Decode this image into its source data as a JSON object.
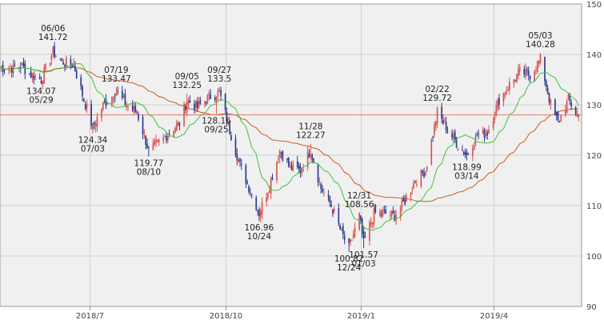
{
  "chart_data": {
    "type": "candlestick",
    "title": "",
    "xlabel": "",
    "ylabel": "",
    "ylim": [
      90,
      150
    ],
    "y_ticks": [
      90,
      100,
      110,
      120,
      130,
      140,
      150
    ],
    "x_range": [
      "2018-05-01",
      "2019-05-31"
    ],
    "x_ticks": [
      {
        "date": "2018-07-01",
        "label": "2018/7"
      },
      {
        "date": "2018-10-01",
        "label": "2018/10"
      },
      {
        "date": "2019-01-01",
        "label": "2019/1"
      },
      {
        "date": "2019-04-01",
        "label": "2019/4"
      }
    ],
    "grid": true,
    "colors": {
      "up": "#d9534f",
      "down": "#2b3990",
      "ma_short": "#3fc23f",
      "ma_long": "#c85a1e",
      "reference_line": "#e8776e",
      "grid": "#cfcfcf",
      "background": "#f0f0f0"
    },
    "reference_line": 128,
    "annotations": [
      {
        "date": "2018-06-06",
        "value": 141.72,
        "label_top": "06/06",
        "label_bottom": "141.72",
        "pos": "above"
      },
      {
        "date": "2018-05-29",
        "value": 134.07,
        "label_top": "134.07",
        "label_bottom": "05/29",
        "pos": "below"
      },
      {
        "date": "2018-07-03",
        "value": 124.34,
        "label_top": "124.34",
        "label_bottom": "07/03",
        "pos": "below"
      },
      {
        "date": "2018-07-19",
        "value": 133.47,
        "label_top": "07/19",
        "label_bottom": "133.47",
        "pos": "above"
      },
      {
        "date": "2018-08-10",
        "value": 119.77,
        "label_top": "119.77",
        "label_bottom": "08/10",
        "pos": "below"
      },
      {
        "date": "2018-09-27",
        "value": 133.5,
        "label_top": "09/27",
        "label_bottom": "133.5",
        "pos": "above"
      },
      {
        "date": "2018-09-05",
        "value": 132.25,
        "label_top": "09/05",
        "label_bottom": "132.25",
        "pos": "above"
      },
      {
        "date": "2018-09-25",
        "value": 128.16,
        "label_top": "128.16",
        "label_bottom": "09/25",
        "pos": "below"
      },
      {
        "date": "2018-10-24",
        "value": 106.96,
        "label_top": "106.96",
        "label_bottom": "10/24",
        "pos": "below"
      },
      {
        "date": "2018-11-28",
        "value": 122.27,
        "label_top": "11/28",
        "label_bottom": "122.27",
        "pos": "above"
      },
      {
        "date": "2018-12-31",
        "value": 108.56,
        "label_top": "12/31",
        "label_bottom": "108.56",
        "pos": "above"
      },
      {
        "date": "2018-12-24",
        "value": 100.82,
        "label_top": "100.82",
        "label_bottom": "12/24",
        "pos": "below"
      },
      {
        "date": "2019-01-03",
        "value": 101.57,
        "label_top": "101.57",
        "label_bottom": "01/03",
        "pos": "below"
      },
      {
        "date": "2019-02-22",
        "value": 129.72,
        "label_top": "02/22",
        "label_bottom": "129.72",
        "pos": "above"
      },
      {
        "date": "2019-03-14",
        "value": 118.99,
        "label_top": "118.99",
        "label_bottom": "03/14",
        "pos": "below"
      },
      {
        "date": "2019-05-03",
        "value": 140.28,
        "label_top": "05/03",
        "label_bottom": "140.28",
        "pos": "above"
      }
    ],
    "close_anchors": [
      [
        "2018-05-01",
        137.5
      ],
      [
        "2018-05-08",
        137.2
      ],
      [
        "2018-05-15",
        137.8
      ],
      [
        "2018-05-22",
        136.0
      ],
      [
        "2018-05-29",
        135.0
      ],
      [
        "2018-06-06",
        140.5
      ],
      [
        "2018-06-12",
        138.5
      ],
      [
        "2018-06-20",
        138.0
      ],
      [
        "2018-06-26",
        132.0
      ],
      [
        "2018-07-03",
        125.5
      ],
      [
        "2018-07-10",
        130.0
      ],
      [
        "2018-07-19",
        132.5
      ],
      [
        "2018-07-26",
        130.0
      ],
      [
        "2018-08-02",
        128.5
      ],
      [
        "2018-08-10",
        121.0
      ],
      [
        "2018-08-17",
        122.5
      ],
      [
        "2018-08-24",
        124.5
      ],
      [
        "2018-08-31",
        126.5
      ],
      [
        "2018-09-05",
        131.0
      ],
      [
        "2018-09-12",
        129.5
      ],
      [
        "2018-09-20",
        131.5
      ],
      [
        "2018-09-27",
        132.5
      ],
      [
        "2018-10-04",
        125.0
      ],
      [
        "2018-10-11",
        118.0
      ],
      [
        "2018-10-18",
        113.0
      ],
      [
        "2018-10-24",
        108.5
      ],
      [
        "2018-10-31",
        114.0
      ],
      [
        "2018-11-07",
        121.0
      ],
      [
        "2018-11-14",
        117.5
      ],
      [
        "2018-11-21",
        117.0
      ],
      [
        "2018-11-28",
        121.0
      ],
      [
        "2018-12-05",
        113.5
      ],
      [
        "2018-12-12",
        110.0
      ],
      [
        "2018-12-19",
        104.5
      ],
      [
        "2018-12-24",
        101.5
      ],
      [
        "2018-12-31",
        108.0
      ],
      [
        "2019-01-03",
        102.5
      ],
      [
        "2019-01-10",
        108.5
      ],
      [
        "2019-01-17",
        108.5
      ],
      [
        "2019-01-24",
        108.0
      ],
      [
        "2019-01-31",
        111.0
      ],
      [
        "2019-02-07",
        115.0
      ],
      [
        "2019-02-14",
        117.0
      ],
      [
        "2019-02-22",
        128.5
      ],
      [
        "2019-03-01",
        125.0
      ],
      [
        "2019-03-08",
        122.0
      ],
      [
        "2019-03-14",
        120.0
      ],
      [
        "2019-03-21",
        124.0
      ],
      [
        "2019-03-28",
        124.5
      ],
      [
        "2019-04-05",
        131.0
      ],
      [
        "2019-04-12",
        134.0
      ],
      [
        "2019-04-19",
        136.5
      ],
      [
        "2019-04-26",
        136.0
      ],
      [
        "2019-05-03",
        139.0
      ],
      [
        "2019-05-10",
        130.0
      ],
      [
        "2019-05-15",
        126.5
      ],
      [
        "2019-05-22",
        131.0
      ],
      [
        "2019-05-28",
        128.0
      ]
    ]
  }
}
